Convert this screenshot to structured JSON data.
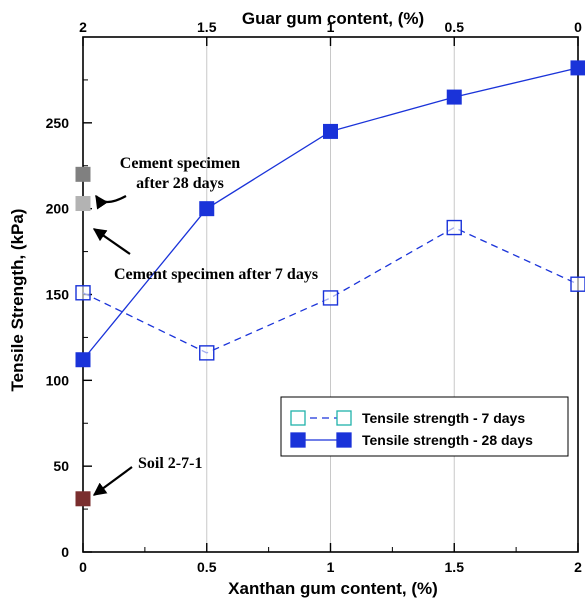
{
  "chart_data": {
    "type": "line",
    "xlabel": "Xanthan gum content, (%)",
    "ylabel": "Tensile Strength, (kPa)",
    "x2label": "Guar gum content, (%)",
    "xlim": [
      0,
      2
    ],
    "ylim": [
      0,
      300
    ],
    "x_ticks": [
      "0",
      "0.5",
      "1",
      "1.5",
      "2"
    ],
    "x2_ticks": [
      "2",
      "1.5",
      "1",
      "0.5",
      "0"
    ],
    "y_ticks": [
      "0",
      "50",
      "100",
      "150",
      "200",
      "250"
    ],
    "grid": "vertical",
    "legend_position": "lower-right",
    "series": [
      {
        "name": "Tensile strength - 7 days",
        "style": "dashed-open-square",
        "color": "#1a33d9",
        "x": [
          0,
          0.5,
          1,
          1.5,
          2
        ],
        "y": [
          151,
          116,
          148,
          189,
          156
        ]
      },
      {
        "name": "Tensile strength - 28 days",
        "style": "solid-filled-square",
        "color": "#1a33d9",
        "x": [
          0,
          0.5,
          1,
          1.5,
          2
        ],
        "y": [
          112,
          200,
          245,
          265,
          282
        ]
      }
    ],
    "reference_points": [
      {
        "label": "Cement specimen after 28 days",
        "lines": [
          "Cement specimen",
          "after 28 days"
        ],
        "x": 0,
        "y": 220,
        "color": "#808080"
      },
      {
        "label": "Cement specimen after 7 days",
        "lines": [
          "Cement specimen after 7 days"
        ],
        "x": 0,
        "y": 203,
        "color": "#b3b3b3"
      },
      {
        "label": "Soil 2-7-1",
        "lines": [
          "Soil 2-7-1"
        ],
        "x": 0,
        "y": 31,
        "color": "#7a2e2e"
      }
    ]
  }
}
